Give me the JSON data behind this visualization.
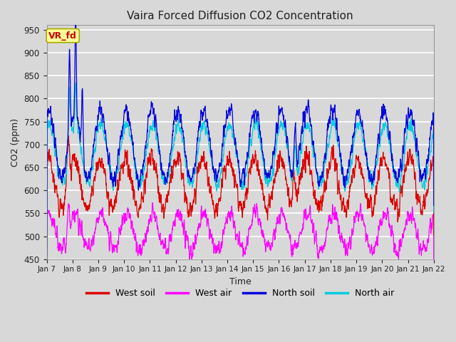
{
  "title": "Vaira Forced Diffusion CO2 Concentration",
  "xlabel": "Time",
  "ylabel": "CO2 (ppm)",
  "ylim": [
    450,
    960
  ],
  "yticks": [
    450,
    500,
    550,
    600,
    650,
    700,
    750,
    800,
    850,
    900,
    950
  ],
  "legend_label": "VR_fd",
  "x_tick_labels": [
    "Jan 7",
    "Jan 8",
    "Jan 9",
    "Jan 10",
    "Jan 11",
    "Jan 12",
    "Jan 13",
    "Jan 14",
    "Jan 15",
    "Jan 16",
    "Jan 17",
    "Jan 18",
    "Jan 19",
    "Jan 20",
    "Jan 21",
    "Jan 22"
  ],
  "series": {
    "west_soil": {
      "color": "#dd0000",
      "label": "West soil"
    },
    "west_air": {
      "color": "#ff00ff",
      "label": "West air"
    },
    "north_soil": {
      "color": "#0000dd",
      "label": "North soil"
    },
    "north_air": {
      "color": "#00ccdd",
      "label": "North air"
    }
  },
  "fig_bg_color": "#d8d8d8",
  "plot_bg_color": "#d8d8d8",
  "grid_color": "#ffffff",
  "num_days": 15,
  "points_per_day": 144,
  "seed": 7
}
